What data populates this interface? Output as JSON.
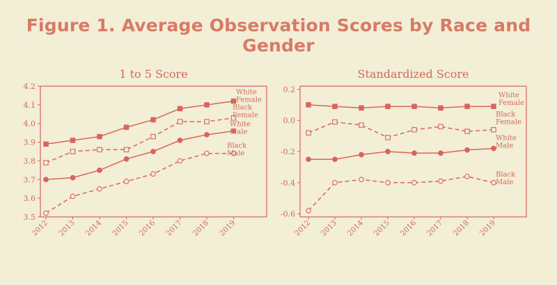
{
  "figure": {
    "title": "Figure 1. Average Observation Scores by Race and Gender"
  },
  "colors": {
    "background": "#f3eed6",
    "accent": "#d8645a",
    "title": "#d87a66"
  },
  "chart_data": [
    {
      "type": "line",
      "title": "1 to 5 Score",
      "x": [
        "2012",
        "2013",
        "2014",
        "2015",
        "2016",
        "2017",
        "2018",
        "2019"
      ],
      "ylim": [
        3.5,
        4.2
      ],
      "yticks": [
        "3.5",
        "3.6",
        "3.7",
        "3.8",
        "3.9",
        "4.0",
        "4.1",
        "4.2"
      ],
      "series": [
        {
          "name": [
            "White",
            "Female"
          ],
          "style": "solid",
          "marker": "square-filled",
          "values": [
            3.89,
            3.91,
            3.93,
            3.98,
            4.02,
            4.08,
            4.1,
            4.12
          ]
        },
        {
          "name": [
            "Black",
            "Female"
          ],
          "style": "dashed",
          "marker": "square-open",
          "values": [
            3.79,
            3.85,
            3.86,
            3.86,
            3.93,
            4.01,
            4.01,
            4.03
          ]
        },
        {
          "name": [
            "White",
            "Male"
          ],
          "style": "solid",
          "marker": "circle-filled",
          "values": [
            3.7,
            3.71,
            3.75,
            3.81,
            3.85,
            3.91,
            3.94,
            3.96
          ]
        },
        {
          "name": [
            "Black",
            "Male"
          ],
          "style": "dashed",
          "marker": "circle-open",
          "values": [
            3.52,
            3.61,
            3.65,
            3.69,
            3.73,
            3.8,
            3.84,
            3.84
          ]
        }
      ]
    },
    {
      "type": "line",
      "title": "Standardized Score",
      "x": [
        "2012",
        "2013",
        "2014",
        "2015",
        "2016",
        "2017",
        "2018",
        "2019"
      ],
      "ylim": [
        -0.62,
        0.22
      ],
      "yticks": [
        "0.2",
        "0.0",
        "-0.2",
        "-0.4",
        "-0.6"
      ],
      "series": [
        {
          "name": [
            "White",
            "Female"
          ],
          "style": "solid",
          "marker": "square-filled",
          "values": [
            0.1,
            0.09,
            0.08,
            0.09,
            0.09,
            0.08,
            0.09,
            0.09
          ]
        },
        {
          "name": [
            "Black",
            "Female"
          ],
          "style": "dashed",
          "marker": "square-open",
          "values": [
            -0.08,
            -0.01,
            -0.03,
            -0.11,
            -0.06,
            -0.04,
            -0.07,
            -0.06
          ]
        },
        {
          "name": [
            "White",
            "Male"
          ],
          "style": "solid",
          "marker": "circle-filled",
          "values": [
            -0.25,
            -0.25,
            -0.22,
            -0.2,
            -0.21,
            -0.21,
            -0.19,
            -0.18
          ]
        },
        {
          "name": [
            "Black",
            "Male"
          ],
          "style": "dashed",
          "marker": "circle-open",
          "values": [
            -0.58,
            -0.4,
            -0.38,
            -0.4,
            -0.4,
            -0.39,
            -0.36,
            -0.4
          ]
        }
      ]
    }
  ]
}
